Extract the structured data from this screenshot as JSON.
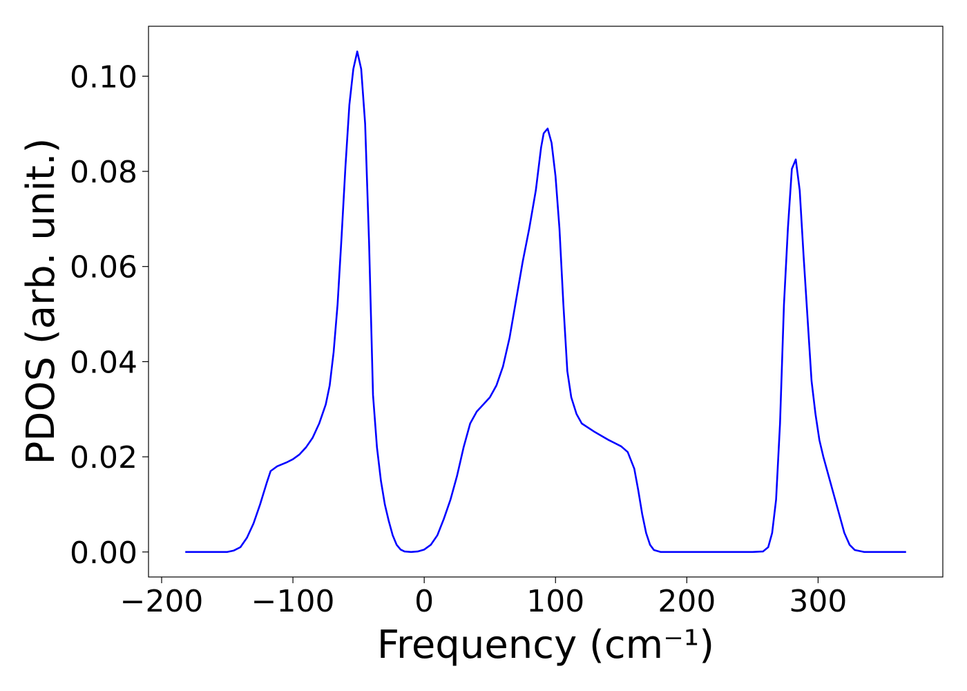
{
  "chart_data": {
    "type": "line",
    "xlabel": "Frequency (cm⁻¹)",
    "ylabel": "PDOS (arb. unit.)",
    "color": "#0000ff",
    "x": [
      -182,
      -150,
      -145,
      -140,
      -135,
      -130,
      -125,
      -120,
      -117,
      -112,
      -105,
      -100,
      -95,
      -90,
      -85,
      -80,
      -75,
      -72,
      -69,
      -66,
      -63,
      -60,
      -57,
      -54,
      -51,
      -48,
      -45,
      -42,
      -39,
      -36,
      -33,
      -30,
      -27,
      -24,
      -21,
      -18,
      -15,
      -10,
      -5,
      0,
      5,
      10,
      15,
      20,
      25,
      30,
      35,
      40,
      45,
      50,
      55,
      60,
      65,
      70,
      75,
      80,
      85,
      89,
      91,
      94,
      97,
      100,
      103,
      106,
      109,
      112,
      116,
      120,
      130,
      140,
      150,
      155,
      160,
      163,
      166,
      169,
      172,
      175,
      180,
      200,
      250,
      258,
      262,
      265,
      268,
      271,
      274,
      277,
      280,
      283,
      286,
      289,
      292,
      295,
      298,
      301,
      304,
      308,
      312,
      316,
      320,
      324,
      328,
      335,
      367
    ],
    "values": [
      0,
      0,
      0.0003,
      0.001,
      0.003,
      0.006,
      0.01,
      0.0145,
      0.017,
      0.018,
      0.0188,
      0.0195,
      0.0205,
      0.022,
      0.024,
      0.027,
      0.031,
      0.035,
      0.042,
      0.052,
      0.066,
      0.081,
      0.094,
      0.1015,
      0.1052,
      0.1015,
      0.09,
      0.065,
      0.033,
      0.022,
      0.015,
      0.01,
      0.0065,
      0.0035,
      0.0015,
      0.0005,
      0.0001,
      0,
      0.0001,
      0.0005,
      0.0015,
      0.0035,
      0.007,
      0.011,
      0.016,
      0.022,
      0.027,
      0.0295,
      0.031,
      0.0325,
      0.035,
      0.039,
      0.045,
      0.053,
      0.061,
      0.068,
      0.076,
      0.085,
      0.088,
      0.089,
      0.086,
      0.079,
      0.068,
      0.052,
      0.038,
      0.0325,
      0.029,
      0.027,
      0.0252,
      0.0236,
      0.0222,
      0.021,
      0.0175,
      0.013,
      0.008,
      0.004,
      0.0015,
      0.0004,
      0,
      0,
      0,
      0.0001,
      0.001,
      0.004,
      0.011,
      0.027,
      0.052,
      0.068,
      0.0805,
      0.0825,
      0.076,
      0.062,
      0.049,
      0.036,
      0.029,
      0.0235,
      0.02,
      0.016,
      0.012,
      0.008,
      0.004,
      0.0015,
      0.0004,
      0,
      0
    ],
    "xlim": [
      -210,
      395
    ],
    "ylim": [
      -0.00526,
      0.1105
    ],
    "xticks": [
      {
        "value": -200,
        "label": "−200"
      },
      {
        "value": -100,
        "label": "−100"
      },
      0,
      100,
      200,
      300
    ],
    "yticks": [
      {
        "value": 0,
        "label": "0.00"
      },
      {
        "value": 0.02,
        "label": "0.02"
      },
      {
        "value": 0.04,
        "label": "0.04"
      },
      {
        "value": 0.06,
        "label": "0.06"
      },
      {
        "value": 0.08,
        "label": "0.08"
      },
      {
        "value": 0.1,
        "label": "0.10"
      }
    ]
  }
}
